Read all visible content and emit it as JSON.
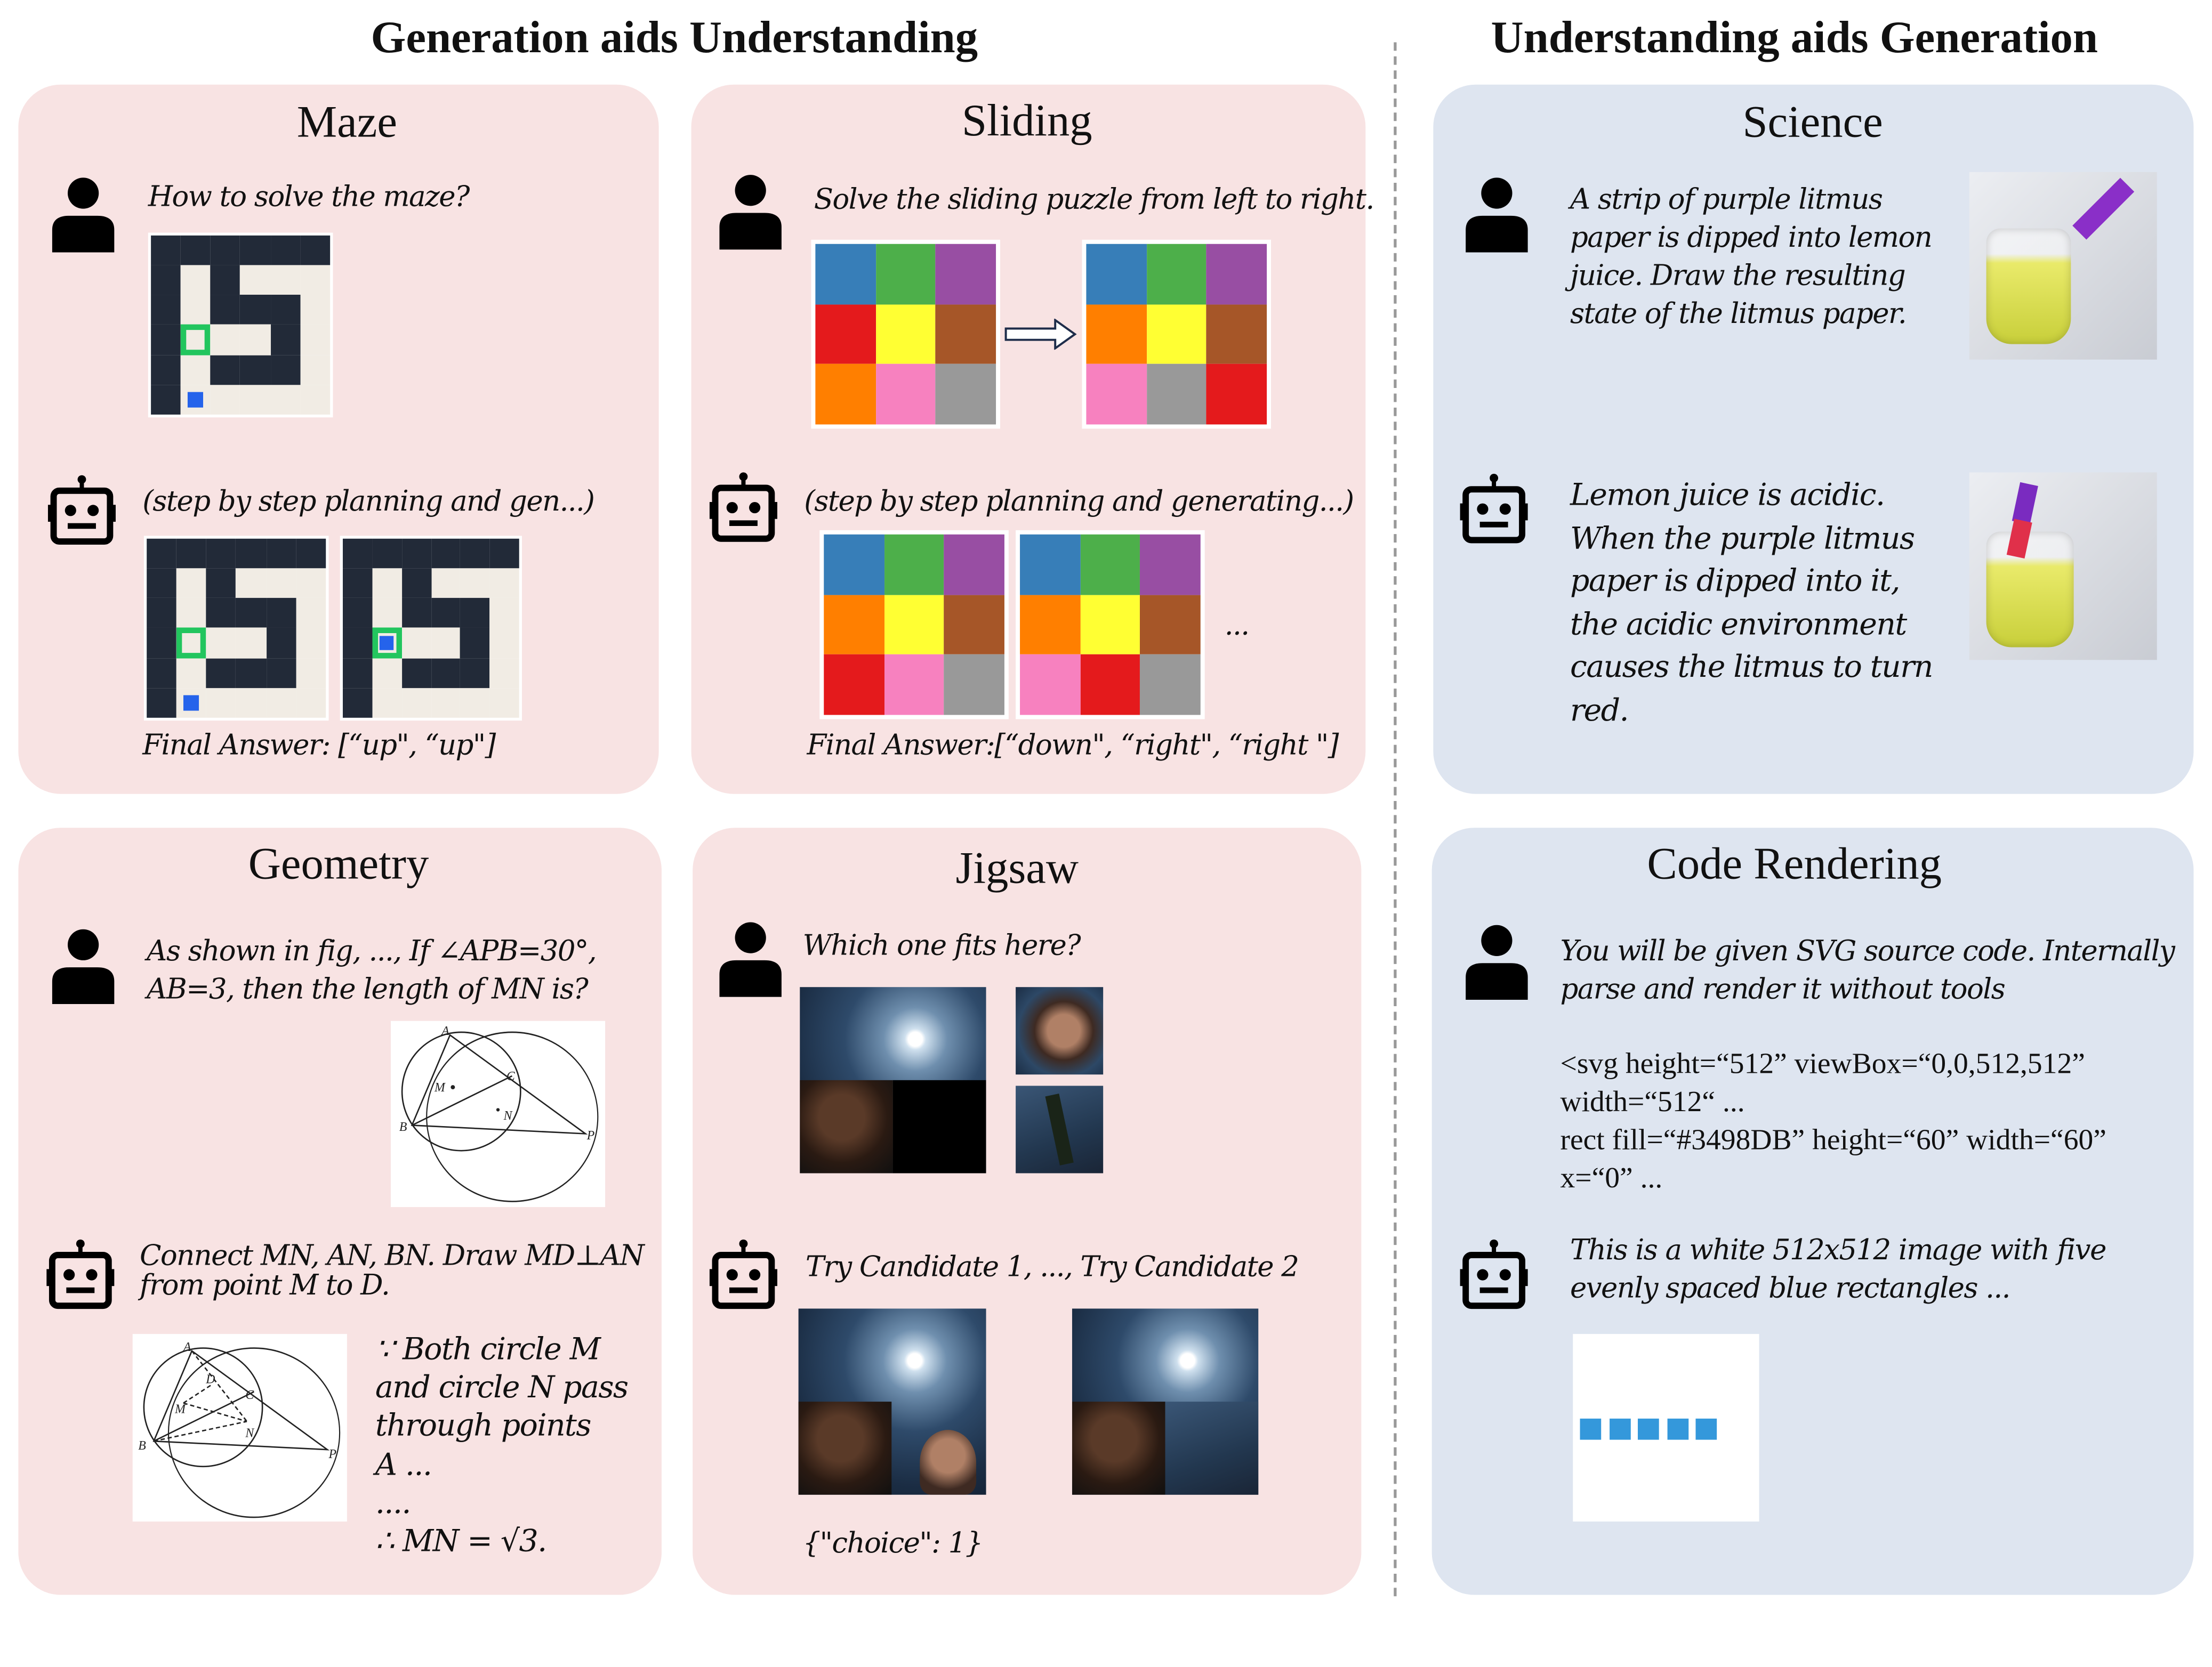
{
  "headers": {
    "left": "Generation aids Understanding",
    "right": "Understanding aids Generation"
  },
  "colors": {
    "pink_panel": "#f8e3e3",
    "blue_panel": "#dee5f0",
    "maze_wall": "#222a38",
    "maze_path": "#f1ece4",
    "maze_target": "#22c55e",
    "maze_agent": "#2563eb",
    "svg_rect": "#3498DB"
  },
  "maze": {
    "title": "Maze",
    "user_text": "How to solve the maze?",
    "bot_text": "(step by step planning and gen...)",
    "final_answer": "Final Answer: [“up\", “up\"]",
    "grid": [
      "WWWWWW",
      "WPWPPP",
      "WPWWWP",
      "WTPPWP",
      "WPWWWP",
      "WAPPPP"
    ],
    "grid_step": [
      "WWWWWW",
      "WPWPPP",
      "WPWWWP",
      "WXPPWP",
      "WPWWWP",
      "WPPPPP"
    ]
  },
  "sliding": {
    "title": "Sliding",
    "user_text": "Solve the sliding puzzle from left to right.",
    "bot_text": "(step by step planning and generating...)",
    "ellipsis": "...",
    "final_answer": "Final Answer:[“down\", “right\", “right \"]",
    "palette": {
      "b": "#377eb8",
      "g": "#4daf4a",
      "p": "#984ea3",
      "r": "#e41a1c",
      "y": "#ffff33",
      "n": "#a65628",
      "o": "#ff7f00",
      "k": "#f781bf",
      "a": "#999999"
    },
    "start": "bgprynoka",
    "target": "bgpoynkar",
    "step1": "bgpoynrka",
    "step2": "bgpoynkra"
  },
  "science": {
    "title": "Science",
    "user_lines": [
      "A strip of purple litmus",
      "paper is dipped into lemon",
      "juice. Draw the resulting",
      "state of the litmus paper."
    ],
    "bot_lines": [
      "Lemon juice is acidic.",
      "When the purple litmus",
      "paper is dipped into it,",
      "the acidic environment",
      "causes the litmus to turn",
      "red."
    ]
  },
  "geometry": {
    "title": "Geometry",
    "user_lines": [
      "As shown in fig, ..., If ∠APB=30°,",
      "AB=3, then the length of MN is?"
    ],
    "bot_lines": [
      "Connect MN, AN, BN. Draw MD⊥AN",
      "from point M to D."
    ],
    "proof_lines": [
      "∵ Both circle M",
      "and circle N pass",
      "through points",
      "A ...",
      "....",
      "∴ MN = √3."
    ],
    "labels": {
      "a": "A",
      "b": "B",
      "c": "C",
      "m": "M",
      "n": "N",
      "p": "P",
      "d": "D"
    }
  },
  "jigsaw": {
    "title": "Jigsaw",
    "user_text": "Which one fits here?",
    "bot_text": "Try Candidate 1, ..., Try Candidate 2",
    "answer": "{\"choice\": 1}"
  },
  "code": {
    "title": "Code Rendering",
    "user_lines": [
      "You will be given SVG source code. Internally",
      "parse and render it without tools"
    ],
    "code_lines": [
      "<svg height=“512” viewBox=“0,0,512,512”",
      "width=“512“ ...",
      "rect fill=“#3498DB” height=“60” width=“60”",
      "x=“0” ..."
    ],
    "bot_lines": [
      "This is a white 512x512 image with five",
      "evenly spaced blue rectangles ..."
    ]
  }
}
